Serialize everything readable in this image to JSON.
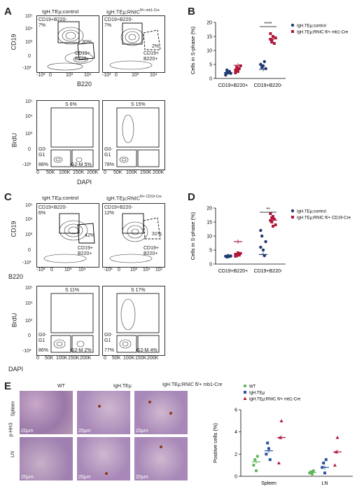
{
  "panels": {
    "A": {
      "letter": "A",
      "col_titles": [
        "IgH.TEμ;control",
        "IgH.TEμ;RNIC",
        "fl/+ mb1-Cre"
      ],
      "flow_top": {
        "ylabel": "CD19",
        "xlabel": "B220",
        "left": {
          "gate1": "CD19+B220-",
          "pct1": "7%",
          "pct2": "30%",
          "gate2": "CD19+",
          "gate2b": "B220+"
        },
        "right": {
          "gate1": "CD19+B220-",
          "pct1": "7%",
          "pct2": "2%",
          "gate2": "CD19+",
          "gate2b": "B220+"
        },
        "yticks": [
          "10⁵",
          "10⁴",
          "10³",
          "0",
          "-10³"
        ],
        "xticks": [
          "-10³",
          "0",
          "10³",
          "10⁴"
        ]
      },
      "flow_bottom": {
        "ylabel": "BrdU",
        "xlabel": "DAPI",
        "left": {
          "s": "S 6%",
          "g0": "G0-",
          "g1": "G1",
          "g1pct": "88%",
          "g2m": "G2-M 5%"
        },
        "right": {
          "s": "S 15%",
          "g0": "G0-",
          "g1": "G1",
          "g1pct": "78%",
          "g2m": ""
        },
        "yticks": [
          "10⁵",
          "10⁴",
          "10³",
          "0",
          "-10³"
        ],
        "xticks": [
          "0",
          "50K",
          "100K",
          "150K",
          "200K"
        ]
      }
    },
    "B": {
      "letter": "B",
      "legend": [
        "IgH.TEμ;control",
        "IgH.TEμ;RNIC fl/+ mb1-Cre"
      ],
      "significance": "****"
    },
    "C": {
      "letter": "C",
      "col_titles": [
        "IgH.TEμ;control",
        "IgH.TEμ;RNIC",
        "fl/+ CD19-Cre"
      ],
      "flow_top": {
        "ylabel": "CD19",
        "xlabel": "B220",
        "left": {
          "gate1": "CD19+B220-",
          "pct1": "6%",
          "pct2": "42%",
          "gate2": "CD19+",
          "gate2b": "B220+"
        },
        "right": {
          "gate1": "CD19+B220-",
          "pct1": "12%",
          "pct2": "31%",
          "gate2": "CD19+",
          "gate2b": "B220+"
        },
        "yticks": [
          "10⁵",
          "10⁴",
          "10³",
          "0",
          "-10³"
        ],
        "xticks": [
          "-10³",
          "0",
          "10³",
          "10⁴",
          "10⁵"
        ]
      },
      "flow_bottom": {
        "ylabel": "BrdU",
        "xlabel": "DAPI",
        "left": {
          "s": "S 11%",
          "g0": "G0-",
          "g1": "G1",
          "g1pct": "86%",
          "g2m": "G2-M 2%"
        },
        "right": {
          "s": "S 17%",
          "g0": "G0-",
          "g1": "G1",
          "g1pct": "77%",
          "g2m": "G2-M 4%"
        },
        "yticks": [
          "10⁵",
          "10⁴",
          "10³",
          "0",
          "-10³"
        ],
        "xticks": [
          "0",
          "50K",
          "100K",
          "150K",
          "200K",
          "250K"
        ]
      }
    },
    "D": {
      "letter": "D",
      "legend": [
        "IgH.TEμ;control",
        "IgH.TEμ;RNIC fl/+ CD19-Cre"
      ],
      "significance": "**"
    },
    "E": {
      "letter": "E",
      "col_titles": [
        "WT",
        "IgH.TEμ",
        "IgH.TEμ;RNIC fl/+ mb1-Cre"
      ],
      "row_labels": [
        "Spleen",
        "LN"
      ],
      "side_label": "p-HH3",
      "scale": "20μm",
      "legend": [
        "WT",
        "IgH.TEμ",
        "IgH.TEμ;RNIC fl/+ mb1-Cre"
      ]
    }
  },
  "colors": {
    "control": "#1f3a6e",
    "rnic": "#b0173a",
    "wt": "#5fb85a",
    "igh": "#2a52a0"
  },
  "chart_data": [
    {
      "type": "scatter",
      "ylabel": "Cells in S-phase (%)",
      "categories": [
        "CD19+B220+",
        "CD19+B220-"
      ],
      "ylim": [
        0,
        20
      ],
      "yticks": [
        0,
        5,
        10,
        15,
        20
      ],
      "series": [
        {
          "name": "IgH.TEμ;control",
          "values": [
            [
              1.5,
              3,
              2,
              2.5,
              1.8,
              1.2,
              2.2
            ],
            [
              5,
              4,
              4.5,
              6,
              3.5,
              5
            ]
          ]
        },
        {
          "name": "IgH.TEμ;RNIC fl/+ mb1-Cre",
          "values": [
            [
              3,
              4,
              2.5,
              3.5,
              4.5,
              2,
              3.2
            ],
            [
              14,
              13,
              15,
              12.5,
              14.5,
              16,
              13.5
            ]
          ]
        }
      ],
      "means": [
        [
          2.1,
          3.3
        ],
        [
          4.7,
          14.1
        ]
      ]
    },
    {
      "type": "scatter",
      "ylabel": "Cells in S-phase (%)",
      "categories": [
        "CD19+B220+",
        "CD19+B220-"
      ],
      "ylim": [
        0,
        20
      ],
      "yticks": [
        0,
        5,
        10,
        15,
        20
      ],
      "series": [
        {
          "name": "IgH.TEμ;control",
          "values": [
            [
              2.8,
              2.5,
              3,
              2.7,
              2.9
            ],
            [
              12,
              10,
              5,
              3,
              8,
              6
            ]
          ]
        },
        {
          "name": "IgH.TEμ;RNIC fl/+ CD19-Cre",
          "values": [
            [
              3.5,
              3,
              4,
              3.2,
              3.8,
              2.8,
              3.4
            ],
            [
              18,
              15,
              17,
              16,
              14,
              15.5,
              16.5,
              13.5
            ]
          ]
        }
      ],
      "means": [
        [
          2.8,
          3.4
        ],
        [
          8,
          15.7
        ]
      ]
    },
    {
      "type": "scatter",
      "ylabel": "Positive cells (%)",
      "categories": [
        "Spleen",
        "LN"
      ],
      "ylim": [
        0,
        6
      ],
      "yticks": [
        0,
        2,
        4,
        6
      ],
      "series": [
        {
          "name": "WT",
          "values": [
            [
              1,
              1.5,
              0.5,
              1.8
            ],
            [
              0.3,
              0.4,
              0.2,
              0.5
            ]
          ]
        },
        {
          "name": "IgH.TEμ",
          "values": [
            [
              2,
              3,
              2.5,
              1.5
            ],
            [
              0.8,
              1.2,
              0.3,
              1.5
            ]
          ]
        },
        {
          "name": "IgH.TEμ;RNIC fl/+ mb1-Cre",
          "values": [
            [
              1.2,
              3.5,
              5
            ],
            [
              1,
              2.2,
              3.5
            ]
          ]
        }
      ],
      "means": [
        [
          1.3,
          0.35
        ],
        [
          2.3,
          0.8
        ],
        [
          3.5,
          2.2
        ]
      ]
    }
  ]
}
